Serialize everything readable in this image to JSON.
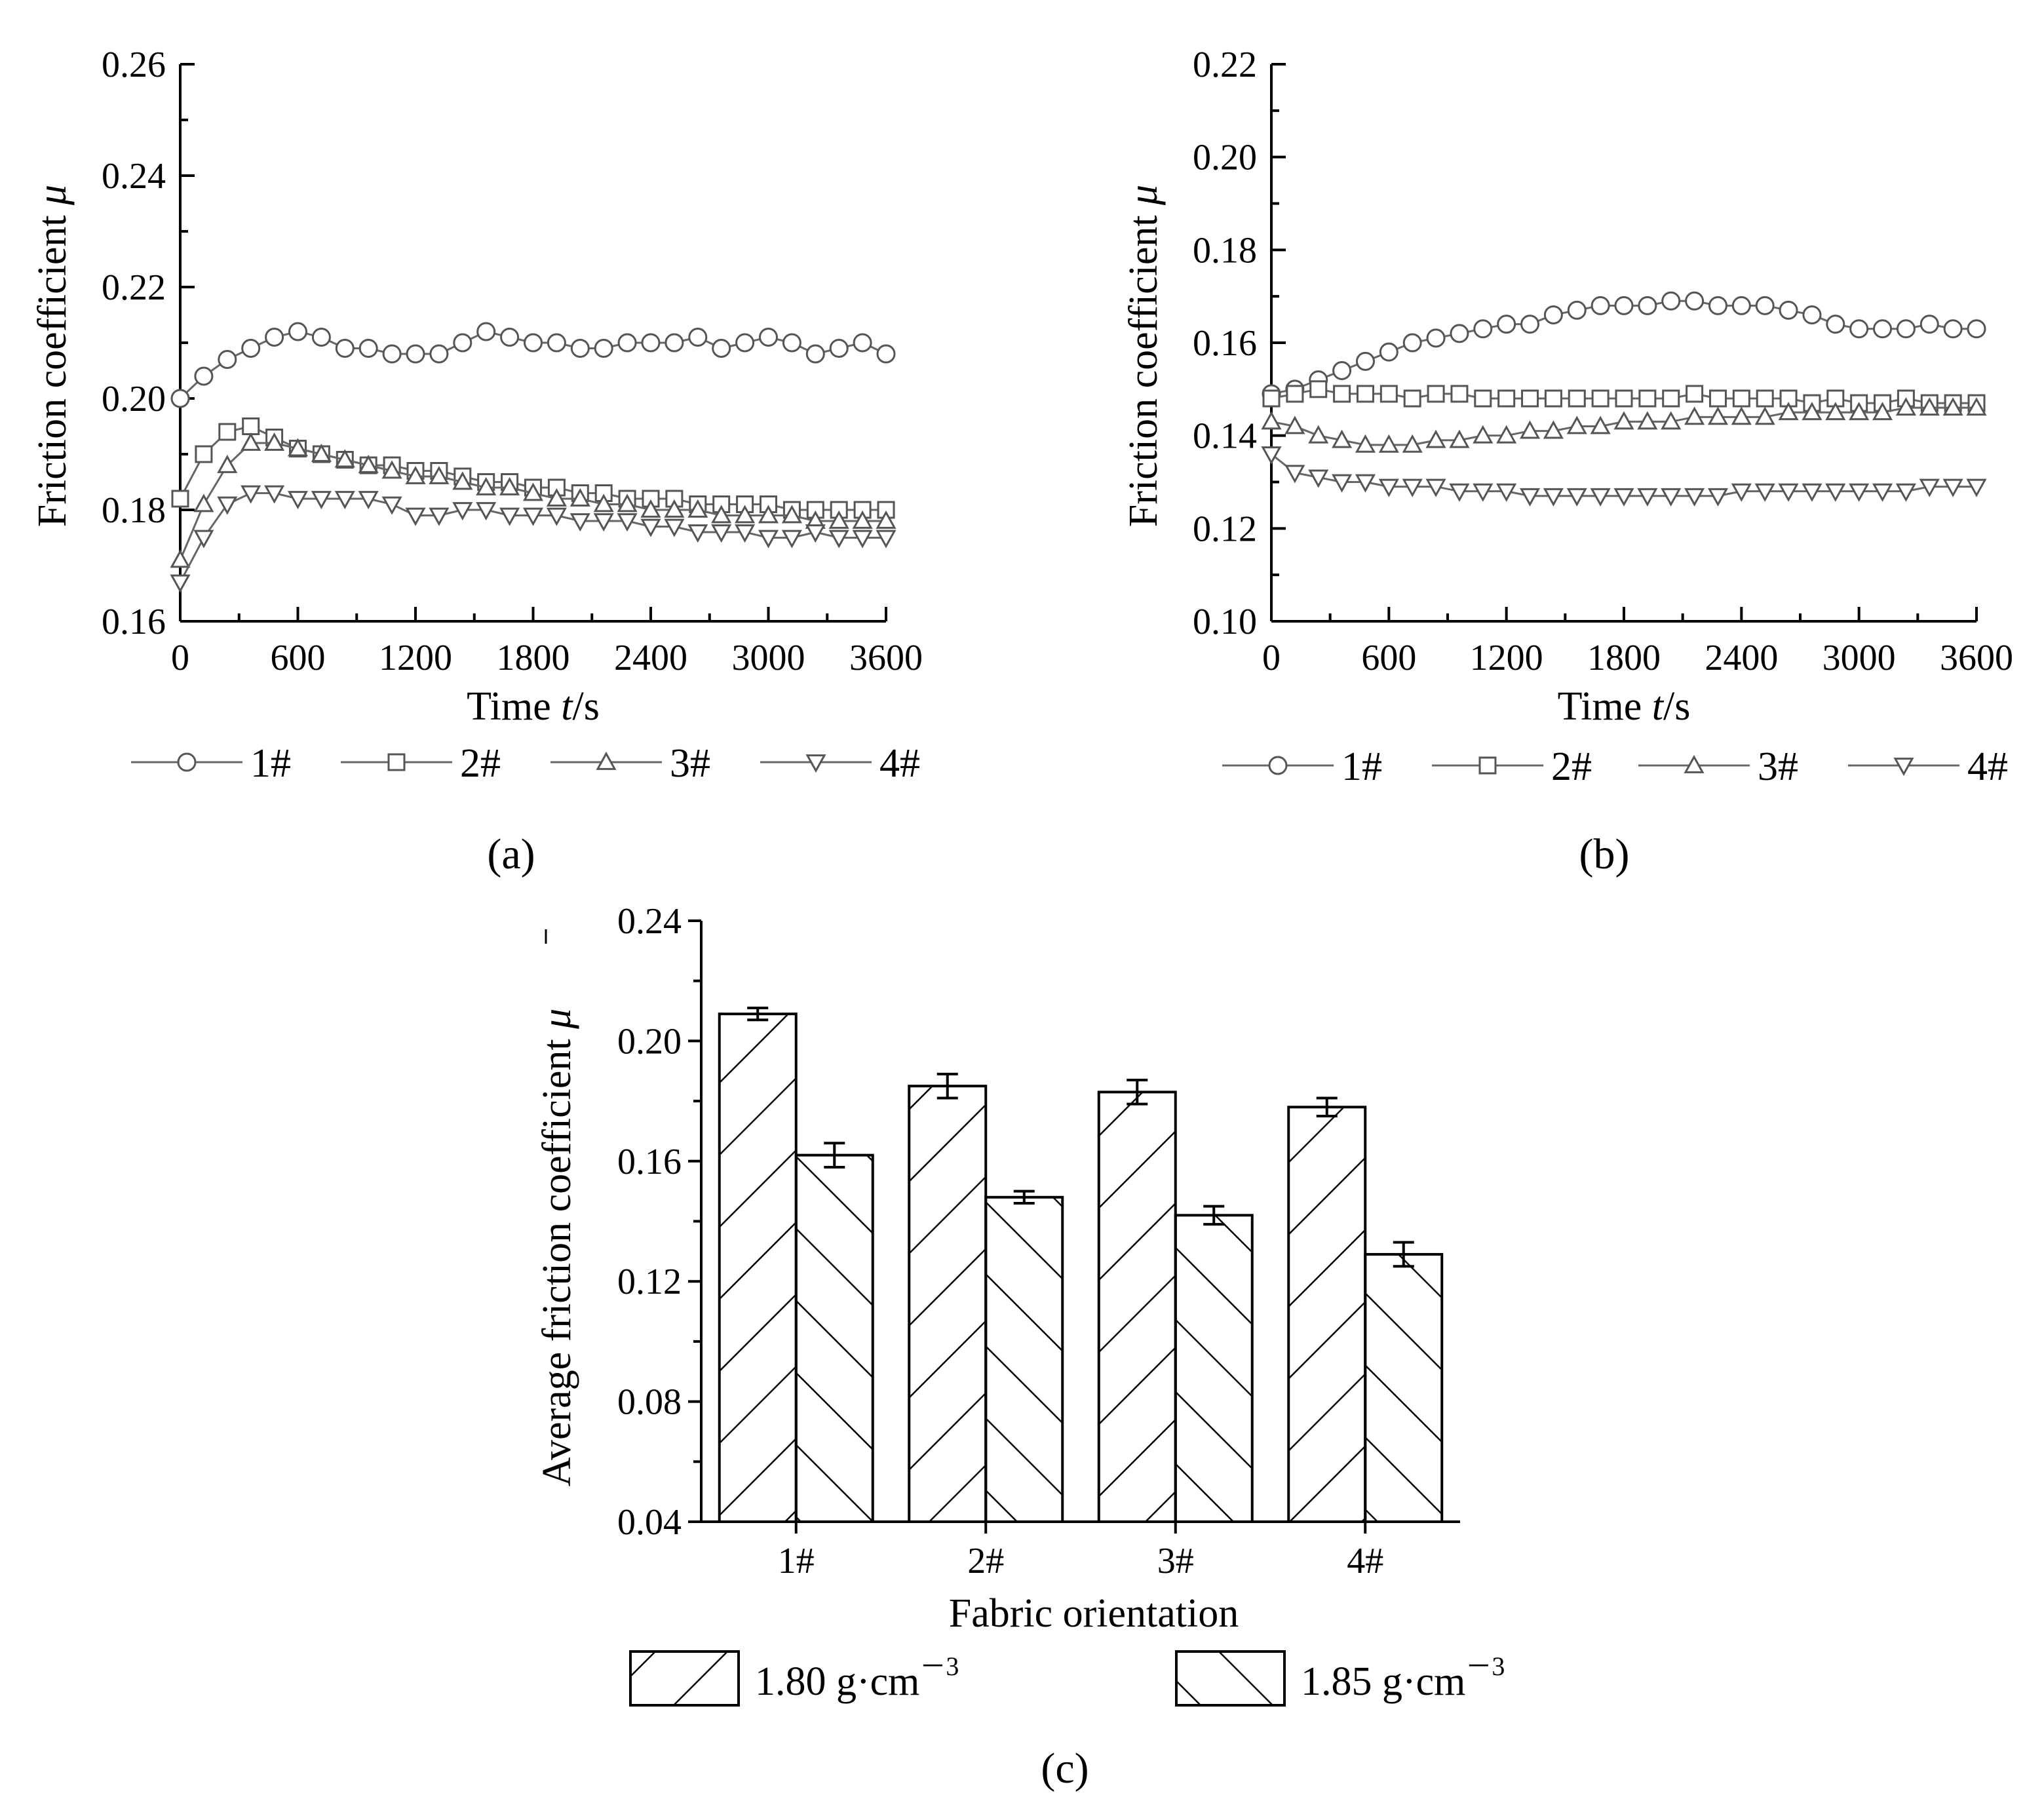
{
  "chart_data": [
    {
      "id": "a",
      "type": "line",
      "panel_label": "(a)",
      "title": "",
      "xlabel": "Time",
      "xlabel_var": "t",
      "xlabel_unit": "/s",
      "ylabel": "Friction coefficient",
      "ylabel_var": "μ",
      "xlim": [
        0,
        3600
      ],
      "ylim": [
        0.16,
        0.26
      ],
      "xticks": [
        0,
        600,
        1200,
        1800,
        2400,
        3000,
        3600
      ],
      "yticks": [
        0.16,
        0.18,
        0.2,
        0.22,
        0.24,
        0.26
      ],
      "ytick_labels": [
        "0.16",
        "0.18",
        "0.20",
        "0.22",
        "0.24",
        "0.26"
      ],
      "grid": false,
      "legend_position": "bottom",
      "series": [
        {
          "name": "1#",
          "marker": "circle",
          "x": [
            0,
            120,
            240,
            360,
            480,
            600,
            720,
            840,
            960,
            1080,
            1200,
            1320,
            1440,
            1560,
            1680,
            1800,
            1920,
            2040,
            2160,
            2280,
            2400,
            2520,
            2640,
            2760,
            2880,
            3000,
            3120,
            3240,
            3360,
            3480,
            3600
          ],
          "values": [
            0.2,
            0.204,
            0.207,
            0.209,
            0.211,
            0.212,
            0.211,
            0.209,
            0.209,
            0.208,
            0.208,
            0.208,
            0.21,
            0.212,
            0.211,
            0.21,
            0.21,
            0.209,
            0.209,
            0.21,
            0.21,
            0.21,
            0.211,
            0.209,
            0.21,
            0.211,
            0.21,
            0.208,
            0.209,
            0.21,
            0.208
          ]
        },
        {
          "name": "2#",
          "marker": "square",
          "x": [
            0,
            120,
            240,
            360,
            480,
            600,
            720,
            840,
            960,
            1080,
            1200,
            1320,
            1440,
            1560,
            1680,
            1800,
            1920,
            2040,
            2160,
            2280,
            2400,
            2520,
            2640,
            2760,
            2880,
            3000,
            3120,
            3240,
            3360,
            3480,
            3600
          ],
          "values": [
            0.182,
            0.19,
            0.194,
            0.195,
            0.193,
            0.191,
            0.19,
            0.189,
            0.188,
            0.188,
            0.187,
            0.187,
            0.186,
            0.185,
            0.185,
            0.184,
            0.184,
            0.183,
            0.183,
            0.182,
            0.182,
            0.182,
            0.181,
            0.181,
            0.181,
            0.181,
            0.18,
            0.18,
            0.18,
            0.18,
            0.18
          ]
        },
        {
          "name": "3#",
          "marker": "triangle-up",
          "x": [
            0,
            120,
            240,
            360,
            480,
            600,
            720,
            840,
            960,
            1080,
            1200,
            1320,
            1440,
            1560,
            1680,
            1800,
            1920,
            2040,
            2160,
            2280,
            2400,
            2520,
            2640,
            2760,
            2880,
            3000,
            3120,
            3240,
            3360,
            3480,
            3600
          ],
          "values": [
            0.171,
            0.181,
            0.188,
            0.192,
            0.192,
            0.191,
            0.19,
            0.189,
            0.188,
            0.187,
            0.186,
            0.186,
            0.185,
            0.184,
            0.184,
            0.183,
            0.182,
            0.182,
            0.181,
            0.181,
            0.18,
            0.18,
            0.18,
            0.179,
            0.179,
            0.179,
            0.179,
            0.178,
            0.178,
            0.178,
            0.178
          ]
        },
        {
          "name": "4#",
          "marker": "triangle-down",
          "x": [
            0,
            120,
            240,
            360,
            480,
            600,
            720,
            840,
            960,
            1080,
            1200,
            1320,
            1440,
            1560,
            1680,
            1800,
            1920,
            2040,
            2160,
            2280,
            2400,
            2520,
            2640,
            2760,
            2880,
            3000,
            3120,
            3240,
            3360,
            3480,
            3600
          ],
          "values": [
            0.167,
            0.175,
            0.181,
            0.183,
            0.183,
            0.182,
            0.182,
            0.182,
            0.182,
            0.181,
            0.179,
            0.179,
            0.18,
            0.18,
            0.179,
            0.179,
            0.179,
            0.178,
            0.178,
            0.178,
            0.177,
            0.177,
            0.176,
            0.176,
            0.176,
            0.175,
            0.175,
            0.176,
            0.175,
            0.175,
            0.175
          ]
        }
      ]
    },
    {
      "id": "b",
      "type": "line",
      "panel_label": "(b)",
      "title": "",
      "xlabel": "Time",
      "xlabel_var": "t",
      "xlabel_unit": "/s",
      "ylabel": "Friction coefficient",
      "ylabel_var": "μ",
      "xlim": [
        0,
        3600
      ],
      "ylim": [
        0.1,
        0.22
      ],
      "xticks": [
        0,
        600,
        1200,
        1800,
        2400,
        3000,
        3600
      ],
      "yticks": [
        0.1,
        0.12,
        0.14,
        0.16,
        0.18,
        0.2,
        0.22
      ],
      "ytick_labels": [
        "0.10",
        "0.12",
        "0.14",
        "0.16",
        "0.18",
        "0.20",
        "0.22"
      ],
      "grid": false,
      "legend_position": "bottom",
      "series": [
        {
          "name": "1#",
          "marker": "circle",
          "x": [
            0,
            120,
            240,
            360,
            480,
            600,
            720,
            840,
            960,
            1080,
            1200,
            1320,
            1440,
            1560,
            1680,
            1800,
            1920,
            2040,
            2160,
            2280,
            2400,
            2520,
            2640,
            2760,
            2880,
            3000,
            3120,
            3240,
            3360,
            3480,
            3600
          ],
          "values": [
            0.149,
            0.15,
            0.152,
            0.154,
            0.156,
            0.158,
            0.16,
            0.161,
            0.162,
            0.163,
            0.164,
            0.164,
            0.166,
            0.167,
            0.168,
            0.168,
            0.168,
            0.169,
            0.169,
            0.168,
            0.168,
            0.168,
            0.167,
            0.166,
            0.164,
            0.163,
            0.163,
            0.163,
            0.164,
            0.163,
            0.163
          ]
        },
        {
          "name": "2#",
          "marker": "square",
          "x": [
            0,
            120,
            240,
            360,
            480,
            600,
            720,
            840,
            960,
            1080,
            1200,
            1320,
            1440,
            1560,
            1680,
            1800,
            1920,
            2040,
            2160,
            2280,
            2400,
            2520,
            2640,
            2760,
            2880,
            3000,
            3120,
            3240,
            3360,
            3480,
            3600
          ],
          "values": [
            0.148,
            0.149,
            0.15,
            0.149,
            0.149,
            0.149,
            0.148,
            0.149,
            0.149,
            0.148,
            0.148,
            0.148,
            0.148,
            0.148,
            0.148,
            0.148,
            0.148,
            0.148,
            0.149,
            0.148,
            0.148,
            0.148,
            0.148,
            0.147,
            0.148,
            0.147,
            0.147,
            0.148,
            0.147,
            0.147,
            0.147
          ]
        },
        {
          "name": "3#",
          "marker": "triangle-up",
          "x": [
            0,
            120,
            240,
            360,
            480,
            600,
            720,
            840,
            960,
            1080,
            1200,
            1320,
            1440,
            1560,
            1680,
            1800,
            1920,
            2040,
            2160,
            2280,
            2400,
            2520,
            2640,
            2760,
            2880,
            3000,
            3120,
            3240,
            3360,
            3480,
            3600
          ],
          "values": [
            0.143,
            0.142,
            0.14,
            0.139,
            0.138,
            0.138,
            0.138,
            0.139,
            0.139,
            0.14,
            0.14,
            0.141,
            0.141,
            0.142,
            0.142,
            0.143,
            0.143,
            0.143,
            0.144,
            0.144,
            0.144,
            0.144,
            0.145,
            0.145,
            0.145,
            0.145,
            0.145,
            0.146,
            0.146,
            0.146,
            0.146
          ]
        },
        {
          "name": "4#",
          "marker": "triangle-down",
          "x": [
            0,
            120,
            240,
            360,
            480,
            600,
            720,
            840,
            960,
            1080,
            1200,
            1320,
            1440,
            1560,
            1680,
            1800,
            1920,
            2040,
            2160,
            2280,
            2400,
            2520,
            2640,
            2760,
            2880,
            3000,
            3120,
            3240,
            3360,
            3480,
            3600
          ],
          "values": [
            0.136,
            0.132,
            0.131,
            0.13,
            0.13,
            0.129,
            0.129,
            0.129,
            0.128,
            0.128,
            0.128,
            0.127,
            0.127,
            0.127,
            0.127,
            0.127,
            0.127,
            0.127,
            0.127,
            0.127,
            0.128,
            0.128,
            0.128,
            0.128,
            0.128,
            0.128,
            0.128,
            0.128,
            0.129,
            0.129,
            0.129
          ]
        }
      ]
    },
    {
      "id": "c",
      "type": "bar",
      "panel_label": "(c)",
      "title": "",
      "xlabel": "Fabric orientation",
      "ylabel": "Average friction coefficient",
      "ylabel_var": "μ",
      "categories": [
        "1#",
        "2#",
        "3#",
        "4#"
      ],
      "ylim": [
        0.04,
        0.24
      ],
      "yticks": [
        0.04,
        0.08,
        0.12,
        0.16,
        0.2,
        0.24
      ],
      "ytick_labels": [
        "0.04",
        "0.08",
        "0.12",
        "0.16",
        "0.20",
        "0.24"
      ],
      "grid": false,
      "legend_position": "bottom",
      "series": [
        {
          "name": "1.80 g·cm",
          "sup": "－3",
          "hatch": "forward",
          "values": [
            0.209,
            0.185,
            0.183,
            0.178
          ],
          "errors": [
            0.002,
            0.004,
            0.004,
            0.003
          ]
        },
        {
          "name": "1.85 g·cm",
          "sup": "－3",
          "hatch": "backward",
          "values": [
            0.162,
            0.148,
            0.142,
            0.129
          ],
          "errors": [
            0.004,
            0.002,
            0.003,
            0.004
          ]
        }
      ]
    }
  ],
  "colors": {
    "axis": "#000000",
    "series_line": "#666666",
    "marker": "#555555",
    "background": "#ffffff"
  }
}
